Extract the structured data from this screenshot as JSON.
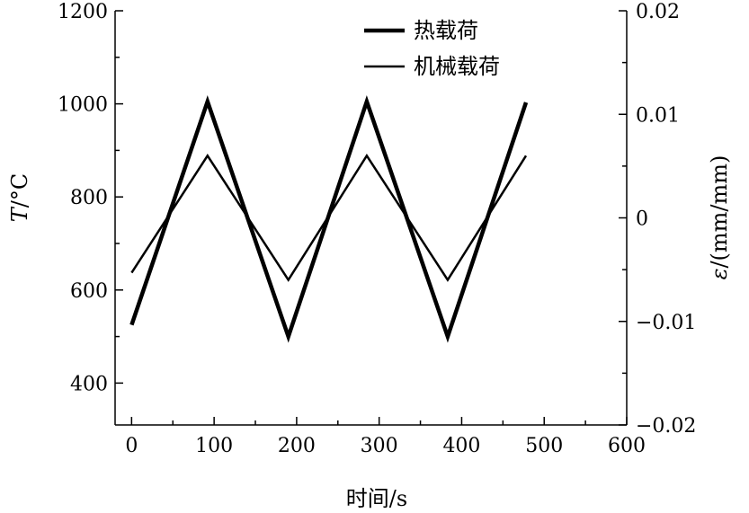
{
  "chart_data": {
    "type": "line",
    "title": "",
    "xlabel": "时间/s",
    "ylabel_left": "T/°C",
    "ylabel_right": "ε/(mm/mm)",
    "xlim": [
      -20,
      600
    ],
    "ylim_left": [
      310,
      1200
    ],
    "ylim_right": [
      -0.02,
      0.02
    ],
    "xticks": [
      0,
      100,
      200,
      300,
      400,
      500,
      600
    ],
    "yticks_left": [
      400,
      600,
      800,
      1000,
      1200
    ],
    "yticks_right": [
      -0.02,
      -0.01,
      0,
      0.01,
      0.02
    ],
    "ytick_labels_right": [
      "−0.02",
      "−0.01",
      "0",
      "0.01",
      "0.02"
    ],
    "grid": false,
    "legend_position": "top-center",
    "series": [
      {
        "name": "热载荷",
        "axis": "left",
        "x": [
          0,
          92,
          190,
          285,
          383,
          478
        ],
        "y": [
          525,
          1005,
          500,
          1005,
          500,
          1003
        ]
      },
      {
        "name": "机械载荷",
        "axis": "right",
        "x": [
          0,
          92,
          190,
          285,
          383,
          478
        ],
        "y": [
          -0.0053,
          0.006,
          -0.006,
          0.006,
          -0.006,
          0.006
        ]
      }
    ]
  }
}
